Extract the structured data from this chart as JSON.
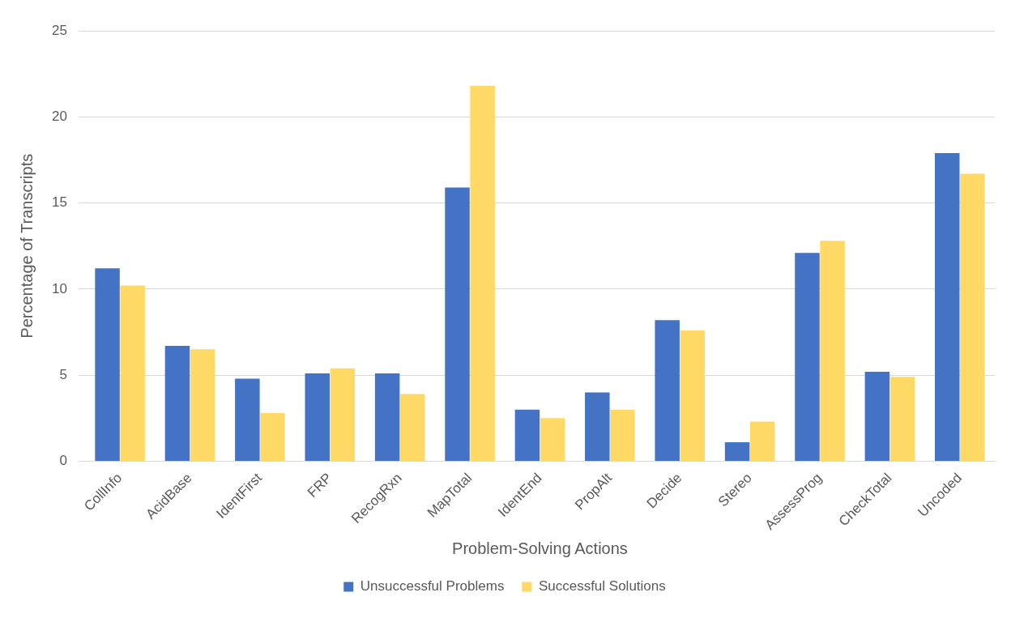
{
  "chart_data": {
    "type": "bar",
    "xlabel": "Problem-Solving Actions",
    "ylabel": "Percentage of Transcripts",
    "categories": [
      "CollInfo",
      "AcidBase",
      "IdentFirst",
      "FRP",
      "RecogRxn",
      "MapTotal",
      "IdentEnd",
      "PropAlt",
      "Decide",
      "Stereo",
      "AssessProg",
      "CheckTotal",
      "Uncoded"
    ],
    "series": [
      {
        "name": "Unsuccessful Problems",
        "color": "#4472c4",
        "values": [
          11.2,
          6.7,
          4.8,
          5.1,
          5.1,
          15.9,
          3.0,
          4.0,
          8.2,
          1.1,
          12.1,
          5.2,
          17.9
        ]
      },
      {
        "name": "Successful Solutions",
        "color": "#ffd966",
        "values": [
          10.2,
          6.5,
          2.8,
          5.4,
          3.9,
          21.8,
          2.5,
          3.0,
          7.6,
          2.3,
          12.8,
          4.9,
          16.7
        ]
      }
    ],
    "ylim": [
      0,
      25
    ],
    "yticks": [
      0,
      5,
      10,
      15,
      20,
      25
    ],
    "grid": "y",
    "legend": "bottom"
  }
}
